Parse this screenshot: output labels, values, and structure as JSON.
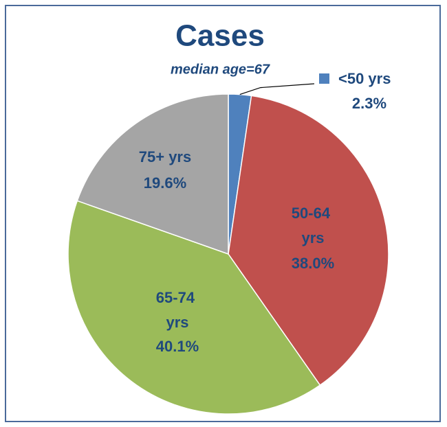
{
  "chart_data": {
    "type": "pie",
    "title": "Cases",
    "subtitle": "median age=67",
    "categories": [
      "<50 yrs",
      "50-64 yrs",
      "65-74 yrs",
      "75+ yrs"
    ],
    "values": [
      2.3,
      38.0,
      40.1,
      19.6
    ],
    "value_labels": [
      "2.3%",
      "38.0%",
      "40.1%",
      "19.6%"
    ],
    "colors": [
      "#4f81bd",
      "#c0504d",
      "#9bbb59",
      "#a5a5a5"
    ]
  }
}
